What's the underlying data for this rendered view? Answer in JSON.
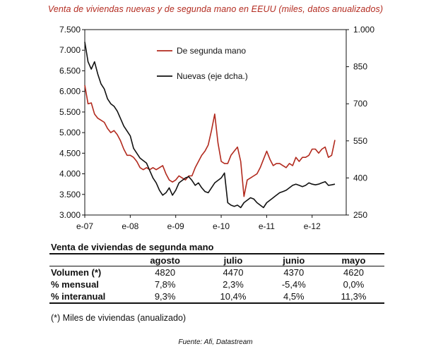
{
  "chart_data": {
    "type": "line",
    "title": "Venta de viviendas nuevas y de segunda mano en EEUU (miles, datos anualizados)",
    "x_tick_labels": [
      "e-07",
      "e-08",
      "e-09",
      "e-10",
      "e-11",
      "e-12"
    ],
    "x_range": [
      2007.0,
      2012.75
    ],
    "left_axis": {
      "ylim": [
        3000,
        7500
      ],
      "ticks": [
        3000,
        3500,
        4000,
        4500,
        5000,
        5500,
        6000,
        6500,
        7000,
        7500
      ],
      "tick_labels": [
        "3.000",
        "3.500",
        "4.000",
        "4.500",
        "5.000",
        "5.500",
        "6.000",
        "6.500",
        "7.000",
        "7.500"
      ]
    },
    "right_axis": {
      "ylim": [
        250,
        1000
      ],
      "ticks": [
        250,
        400,
        550,
        700,
        850,
        1000
      ],
      "tick_labels": [
        "250",
        "400",
        "550",
        "700",
        "850",
        "1.000"
      ]
    },
    "legend": "top-left inside plot",
    "series": [
      {
        "name": "De segunda mano",
        "color": "#b22a1e",
        "axis": "left",
        "values": [
          6150,
          5700,
          5720,
          5450,
          5350,
          5300,
          5250,
          5100,
          5000,
          5050,
          4950,
          4800,
          4600,
          4450,
          4450,
          4400,
          4300,
          4150,
          4100,
          4150,
          4100,
          4150,
          4100,
          4150,
          4200,
          4000,
          3850,
          3800,
          3850,
          3950,
          3900,
          3850,
          3950,
          3950,
          4150,
          4300,
          4450,
          4550,
          4700,
          5050,
          5450,
          4750,
          4300,
          4250,
          4250,
          4450,
          4550,
          4650,
          4300,
          3450,
          3850,
          3900,
          3950,
          4000,
          4150,
          4350,
          4550,
          4350,
          4200,
          4250,
          4250,
          4200,
          4150,
          4250,
          4200,
          4400,
          4300,
          4400,
          4400,
          4450,
          4600,
          4600,
          4500,
          4600,
          4650,
          4400,
          4450,
          4820
        ]
      },
      {
        "name": "Nuevas (eje dcha.)",
        "color": "#111111",
        "axis": "right",
        "values": [
          950,
          870,
          840,
          870,
          820,
          780,
          760,
          720,
          700,
          690,
          670,
          640,
          610,
          590,
          570,
          520,
          500,
          480,
          470,
          460,
          430,
          400,
          380,
          350,
          330,
          340,
          360,
          330,
          350,
          380,
          390,
          400,
          405,
          390,
          370,
          380,
          360,
          345,
          340,
          360,
          380,
          390,
          400,
          420,
          300,
          290,
          285,
          290,
          280,
          300,
          310,
          320,
          315,
          300,
          290,
          280,
          300,
          310,
          320,
          330,
          340,
          345,
          350,
          360,
          370,
          375,
          370,
          365,
          370,
          380,
          375,
          372,
          375,
          380,
          385,
          370,
          372,
          375
        ]
      }
    ]
  },
  "table": {
    "title": "Venta de viviendas de segunda mano",
    "headers": [
      "agosto",
      "julio",
      "junio",
      "mayo"
    ],
    "rows": [
      {
        "label": "Volumen (*)",
        "values": [
          "4820",
          "4470",
          "4370",
          "4620"
        ]
      },
      {
        "label": "% mensual",
        "values": [
          "7,8%",
          "2,3%",
          "-5,4%",
          "0,0%"
        ]
      },
      {
        "label": "% interanual",
        "values": [
          "9,3%",
          "10,4%",
          "4,5%",
          "11,3%"
        ]
      }
    ]
  },
  "footnote": "(*) Miles de viviendas (anualizado)",
  "source": "Fuente: Afi, Datastream"
}
